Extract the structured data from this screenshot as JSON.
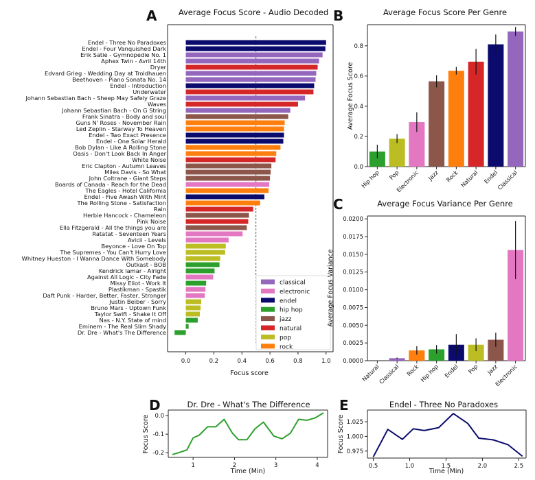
{
  "chart_data": [
    {
      "panel": "A",
      "type": "bar",
      "orientation": "horizontal",
      "title": "Average Focus Score - Audio Decoded",
      "xlabel": "Focus score",
      "xlim": [
        -0.13,
        1.05
      ],
      "xticks": [
        "0.0",
        "0.2",
        "0.4",
        "0.6",
        "0.8",
        "1.0"
      ],
      "reference_line": 0.5,
      "tracks": [
        {
          "label": "Endel - Three No Paradoxes",
          "value": 1.0,
          "genre": "endel"
        },
        {
          "label": "Endel - Four Vanquished Dark",
          "value": 0.995,
          "genre": "endel"
        },
        {
          "label": "Erik Satie - Gymnopedie No. 1",
          "value": 0.975,
          "genre": "classical"
        },
        {
          "label": "Aphex Twin  - Avril 14th",
          "value": 0.95,
          "genre": "classical"
        },
        {
          "label": "Dryer",
          "value": 0.94,
          "genre": "natural"
        },
        {
          "label": "Edvard Grieg - Wedding Day at Troldhauen",
          "value": 0.93,
          "genre": "classical"
        },
        {
          "label": "Beethoven - Piano Sonata No. 14",
          "value": 0.925,
          "genre": "classical"
        },
        {
          "label": "Endel - Introduction",
          "value": 0.915,
          "genre": "endel"
        },
        {
          "label": "Underwater",
          "value": 0.91,
          "genre": "natural"
        },
        {
          "label": "Johann Sebastian Bach - Sheep May Safely Graze",
          "value": 0.85,
          "genre": "classical"
        },
        {
          "label": "Waves",
          "value": 0.8,
          "genre": "natural"
        },
        {
          "label": "Johann Sebastian Bach - On G String",
          "value": 0.745,
          "genre": "classical"
        },
        {
          "label": "Frank Sinatra - Body and soul",
          "value": 0.73,
          "genre": "jazz"
        },
        {
          "label": "Guns N' Roses - November Rain",
          "value": 0.705,
          "genre": "rock"
        },
        {
          "label": "Led Zeplin - Starway To Heaven",
          "value": 0.7,
          "genre": "rock"
        },
        {
          "label": "Endel - Two Exact Presence",
          "value": 0.7,
          "genre": "endel"
        },
        {
          "label": "Endel - One Solar Herald",
          "value": 0.695,
          "genre": "endel"
        },
        {
          "label": "Bob Dylan - Like A Rolling Stone",
          "value": 0.675,
          "genre": "rock"
        },
        {
          "label": "Oasis - Don't Look Back In Anger",
          "value": 0.645,
          "genre": "rock"
        },
        {
          "label": "White Noise",
          "value": 0.64,
          "genre": "natural"
        },
        {
          "label": "Eric Clapton - Autumn Leaves",
          "value": 0.61,
          "genre": "jazz"
        },
        {
          "label": "Miles Davis - So What",
          "value": 0.605,
          "genre": "jazz"
        },
        {
          "label": "John Coltrane - Giant Steps",
          "value": 0.6,
          "genre": "jazz"
        },
        {
          "label": "Boards of Canada - Reach for the Dead",
          "value": 0.595,
          "genre": "electronic"
        },
        {
          "label": "The Eagles - Hotel California",
          "value": 0.59,
          "genre": "rock"
        },
        {
          "label": "Endel - Five Awash With Mint",
          "value": 0.56,
          "genre": "endel"
        },
        {
          "label": "The Rolling Stone - Satisfaction",
          "value": 0.53,
          "genre": "rock"
        },
        {
          "label": "Rain",
          "value": 0.48,
          "genre": "natural"
        },
        {
          "label": "Herbie Hancock - Chameleon",
          "value": 0.45,
          "genre": "jazz"
        },
        {
          "label": "Pink Noise",
          "value": 0.445,
          "genre": "natural"
        },
        {
          "label": "Ella Fitzgerald - All the things you are",
          "value": 0.435,
          "genre": "jazz"
        },
        {
          "label": "Ratatat - Seventeen Years",
          "value": 0.405,
          "genre": "electronic"
        },
        {
          "label": "Avicii - Levels",
          "value": 0.305,
          "genre": "electronic"
        },
        {
          "label": "Beyonce - Love On Top",
          "value": 0.285,
          "genre": "pop"
        },
        {
          "label": "The Supremes - You Can't Hurry Love",
          "value": 0.28,
          "genre": "pop"
        },
        {
          "label": "Whitney Hueston - I Wanna Dance With Somebody",
          "value": 0.245,
          "genre": "pop"
        },
        {
          "label": "Outkast - BOB",
          "value": 0.24,
          "genre": "hip hop"
        },
        {
          "label": "Kendrick lamar - Alright",
          "value": 0.205,
          "genre": "hip hop"
        },
        {
          "label": "Against All Logic - City Fade",
          "value": 0.195,
          "genre": "electronic"
        },
        {
          "label": "Missy Eliot - Work It",
          "value": 0.145,
          "genre": "hip hop"
        },
        {
          "label": "Plastikman - Spastik",
          "value": 0.14,
          "genre": "electronic"
        },
        {
          "label": "Daft Punk - Harder, Better, Faster, Stronger",
          "value": 0.135,
          "genre": "electronic"
        },
        {
          "label": "Justin Beiber - Sorry",
          "value": 0.11,
          "genre": "pop"
        },
        {
          "label": "Bruno Mars - Uptown Funk",
          "value": 0.105,
          "genre": "pop"
        },
        {
          "label": "Taylor Swift - Shake It Off",
          "value": 0.1,
          "genre": "pop"
        },
        {
          "label": "Nas - N.Y. State of mind",
          "value": 0.085,
          "genre": "hip hop"
        },
        {
          "label": "Eminem - The Real Slim Shady",
          "value": 0.02,
          "genre": "hip hop"
        },
        {
          "label": "Dr. Dre - What's The Difference",
          "value": -0.08,
          "genre": "hip hop"
        }
      ],
      "legend": [
        "classical",
        "electronic",
        "endel",
        "hip hop",
        "jazz",
        "natural",
        "pop",
        "rock"
      ],
      "legend_placement": "lower-right"
    },
    {
      "panel": "B",
      "type": "bar",
      "title": "Average Focus Score Per Genre",
      "ylabel": "Average Focus Score",
      "ylim": [
        0,
        0.94
      ],
      "yticks": [
        "0.0",
        "0.2",
        "0.4",
        "0.6",
        "0.8"
      ],
      "categories": [
        "Hip hop",
        "Pop",
        "Electronic",
        "Jazz",
        "Rock",
        "Natural",
        "Endel",
        "Classical"
      ],
      "values": [
        0.1,
        0.185,
        0.295,
        0.565,
        0.635,
        0.695,
        0.81,
        0.895
      ],
      "errors": [
        0.045,
        0.03,
        0.065,
        0.04,
        0.025,
        0.085,
        0.065,
        0.03
      ],
      "genres": [
        "hip hop",
        "pop",
        "electronic",
        "jazz",
        "rock",
        "natural",
        "endel",
        "classical"
      ]
    },
    {
      "panel": "C",
      "type": "bar",
      "title": "Average Focus Variance Per Genre",
      "ylabel": "Average Focus Variance",
      "ylim": [
        0,
        0.0204
      ],
      "yticks": [
        "0.0000",
        "0.0025",
        "0.0050",
        "0.0075",
        "0.0100",
        "0.0125",
        "0.0150",
        "0.0175",
        "0.0200"
      ],
      "categories": [
        "Natural",
        "Classical",
        "Rock",
        "Hip hop",
        "Endel",
        "Pop",
        "Jazz",
        "Electronic"
      ],
      "values": [
        0.0,
        0.00035,
        0.00145,
        0.0016,
        0.00225,
        0.00225,
        0.00295,
        0.0156
      ],
      "errors": [
        0.0,
        0.0001,
        0.0006,
        0.0006,
        0.0015,
        0.0009,
        0.001,
        0.0041
      ],
      "genres": [
        "natural",
        "classical",
        "rock",
        "hip hop",
        "endel",
        "pop",
        "jazz",
        "electronic"
      ]
    },
    {
      "panel": "D",
      "type": "line",
      "title": "Dr. Dre - What's The Difference",
      "xlabel": "Time (Min)",
      "ylabel": "Focus Score",
      "xlim": [
        0.4,
        4.25
      ],
      "ylim": [
        -0.225,
        0.03
      ],
      "xticks": [
        "1",
        "2",
        "3",
        "4"
      ],
      "yticks": [
        "0.0",
        "-0.1",
        "-0.2"
      ],
      "color": "#2ca02c",
      "x": [
        0.5,
        0.65,
        0.85,
        1.0,
        1.15,
        1.35,
        1.55,
        1.75,
        1.95,
        2.1,
        2.3,
        2.5,
        2.7,
        2.95,
        3.15,
        3.35,
        3.55,
        3.75,
        3.95,
        4.15
      ],
      "y": [
        -0.21,
        -0.2,
        -0.185,
        -0.12,
        -0.105,
        -0.06,
        -0.06,
        -0.02,
        -0.095,
        -0.13,
        -0.13,
        -0.07,
        -0.035,
        -0.11,
        -0.125,
        -0.095,
        -0.02,
        -0.025,
        -0.012,
        0.015
      ]
    },
    {
      "panel": "E",
      "type": "line",
      "title": "Endel - Three No Paradoxes",
      "xlabel": "Time (Min)",
      "ylabel": "Focus Score",
      "xlim": [
        0.42,
        2.6
      ],
      "ylim": [
        0.963,
        1.045
      ],
      "xticks": [
        "0.5",
        "1.0",
        "1.5",
        "2.0",
        "2.5"
      ],
      "yticks": [
        "0.975",
        "1.000",
        "1.025"
      ],
      "color": "#0b0b6e",
      "x": [
        0.5,
        0.7,
        0.9,
        1.05,
        1.2,
        1.4,
        1.6,
        1.8,
        1.95,
        2.15,
        2.35,
        2.55
      ],
      "y": [
        0.965,
        1.012,
        0.995,
        1.013,
        1.01,
        1.015,
        1.039,
        1.022,
        0.997,
        0.994,
        0.986,
        0.966
      ]
    }
  ],
  "genre_colors": {
    "classical": "#9467bd",
    "electronic": "#e377c2",
    "endel": "#0b0b6e",
    "hip hop": "#2ca02c",
    "jazz": "#8c564b",
    "natural": "#d62728",
    "pop": "#bcbd22",
    "rock": "#ff7f0e"
  },
  "panel_letters": [
    "A",
    "B",
    "C",
    "D",
    "E"
  ]
}
